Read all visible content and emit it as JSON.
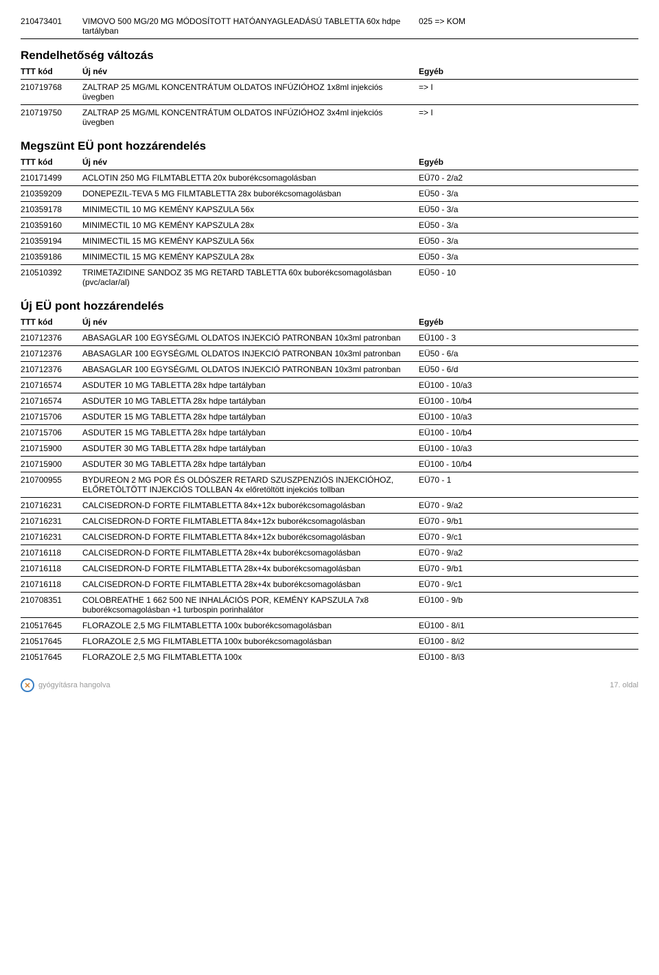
{
  "top_rows": [
    {
      "code": "210473401",
      "name": "VIMOVO 500 MG/20 MG MÓDOSÍTOTT HATÓANYAGLEADÁSÚ TABLETTA 60x hdpe tartályban",
      "other": "025 => KOM"
    }
  ],
  "sections": [
    {
      "title": "Rendelhetőség változás",
      "header": {
        "code": "TTT kód",
        "name": "Új név",
        "other": "Egyéb"
      },
      "rows": [
        {
          "code": "210719768",
          "name": "ZALTRAP 25 MG/ML KONCENTRÁTUM OLDATOS INFÚZIÓHOZ 1x8ml injekciós üvegben",
          "other": "=> I"
        },
        {
          "code": "210719750",
          "name": "ZALTRAP 25 MG/ML KONCENTRÁTUM OLDATOS INFÚZIÓHOZ 3x4ml injekciós üvegben",
          "other": "=> I"
        }
      ]
    },
    {
      "title": "Megszünt EÜ pont hozzárendelés",
      "header": {
        "code": "TTT kód",
        "name": "Új név",
        "other": "Egyéb"
      },
      "rows": [
        {
          "code": "210171499",
          "name": "ACLOTIN 250 MG FILMTABLETTA 20x buborékcsomagolásban",
          "other": "EÜ70 - 2/a2"
        },
        {
          "code": "210359209",
          "name": "DONEPEZIL-TEVA 5 MG FILMTABLETTA 28x buborékcsomagolásban",
          "other": "EÜ50 - 3/a"
        },
        {
          "code": "210359178",
          "name": "MINIMECTIL 10 MG KEMÉNY KAPSZULA 56x",
          "other": "EÜ50 - 3/a"
        },
        {
          "code": "210359160",
          "name": "MINIMECTIL 10 MG KEMÉNY KAPSZULA 28x",
          "other": "EÜ50 - 3/a"
        },
        {
          "code": "210359194",
          "name": "MINIMECTIL 15 MG KEMÉNY KAPSZULA 56x",
          "other": "EÜ50 - 3/a"
        },
        {
          "code": "210359186",
          "name": "MINIMECTIL 15 MG KEMÉNY KAPSZULA 28x",
          "other": "EÜ50 - 3/a"
        },
        {
          "code": "210510392",
          "name": "TRIMETAZIDINE SANDOZ 35 MG RETARD TABLETTA 60x buborékcsomagolásban (pvc/aclar/al)",
          "other": "EÜ50 - 10"
        }
      ]
    },
    {
      "title": "Új EÜ pont hozzárendelés",
      "header": {
        "code": "TTT kód",
        "name": "Új név",
        "other": "Egyéb"
      },
      "rows": [
        {
          "code": "210712376",
          "name": "ABASAGLAR 100 EGYSÉG/ML OLDATOS INJEKCIÓ PATRONBAN 10x3ml patronban",
          "other": "EÜ100 - 3"
        },
        {
          "code": "210712376",
          "name": "ABASAGLAR 100 EGYSÉG/ML OLDATOS INJEKCIÓ PATRONBAN 10x3ml patronban",
          "other": "EÜ50 - 6/a"
        },
        {
          "code": "210712376",
          "name": "ABASAGLAR 100 EGYSÉG/ML OLDATOS INJEKCIÓ PATRONBAN 10x3ml patronban",
          "other": "EÜ50 - 6/d"
        },
        {
          "code": "210716574",
          "name": "ASDUTER 10 MG TABLETTA 28x hdpe tartályban",
          "other": "EÜ100 - 10/a3"
        },
        {
          "code": "210716574",
          "name": "ASDUTER 10 MG TABLETTA 28x hdpe tartályban",
          "other": "EÜ100 - 10/b4"
        },
        {
          "code": "210715706",
          "name": "ASDUTER 15 MG TABLETTA 28x hdpe tartályban",
          "other": "EÜ100 - 10/a3"
        },
        {
          "code": "210715706",
          "name": "ASDUTER 15 MG TABLETTA 28x hdpe tartályban",
          "other": "EÜ100 - 10/b4"
        },
        {
          "code": "210715900",
          "name": "ASDUTER 30 MG TABLETTA 28x hdpe tartályban",
          "other": "EÜ100 - 10/a3"
        },
        {
          "code": "210715900",
          "name": "ASDUTER 30 MG TABLETTA 28x hdpe tartályban",
          "other": "EÜ100 - 10/b4"
        },
        {
          "code": "210700955",
          "name": "BYDUREON 2 MG POR ÉS OLDÓSZER RETARD SZUSZPENZIÓS INJEKCIÓHOZ, ELŐRETÖLTÖTT INJEKCIÓS TOLLBAN 4x előretöltött injekciós tollban",
          "other": "EÜ70 - 1"
        },
        {
          "code": "210716231",
          "name": "CALCISEDRON-D FORTE FILMTABLETTA 84x+12x buborékcsomagolásban",
          "other": "EÜ70 - 9/a2"
        },
        {
          "code": "210716231",
          "name": "CALCISEDRON-D FORTE FILMTABLETTA 84x+12x buborékcsomagolásban",
          "other": "EÜ70 - 9/b1"
        },
        {
          "code": "210716231",
          "name": "CALCISEDRON-D FORTE FILMTABLETTA 84x+12x buborékcsomagolásban",
          "other": "EÜ70 - 9/c1"
        },
        {
          "code": "210716118",
          "name": "CALCISEDRON-D FORTE FILMTABLETTA 28x+4x buborékcsomagolásban",
          "other": "EÜ70 - 9/a2"
        },
        {
          "code": "210716118",
          "name": "CALCISEDRON-D FORTE FILMTABLETTA 28x+4x buborékcsomagolásban",
          "other": "EÜ70 - 9/b1"
        },
        {
          "code": "210716118",
          "name": "CALCISEDRON-D FORTE FILMTABLETTA 28x+4x buborékcsomagolásban",
          "other": "EÜ70 - 9/c1"
        },
        {
          "code": "210708351",
          "name": "COLOBREATHE 1 662 500 NE INHALÁCIÓS POR, KEMÉNY KAPSZULA 7x8 buborékcsomagolásban +1 turbospin porinhalátor",
          "other": "EÜ100 - 9/b"
        },
        {
          "code": "210517645",
          "name": "FLORAZOLE 2,5 MG FILMTABLETTA 100x buborékcsomagolásban",
          "other": "EÜ100 - 8/i1"
        },
        {
          "code": "210517645",
          "name": "FLORAZOLE 2,5 MG FILMTABLETTA 100x buborékcsomagolásban",
          "other": "EÜ100 - 8/i2"
        },
        {
          "code": "210517645",
          "name": "FLORAZOLE 2,5 MG FILMTABLETTA 100x",
          "other": "EÜ100 - 8/i3"
        }
      ]
    }
  ],
  "footer": {
    "tagline": "gyógyításra hangolva",
    "page": "17. oldal",
    "icon_char": "✕"
  }
}
